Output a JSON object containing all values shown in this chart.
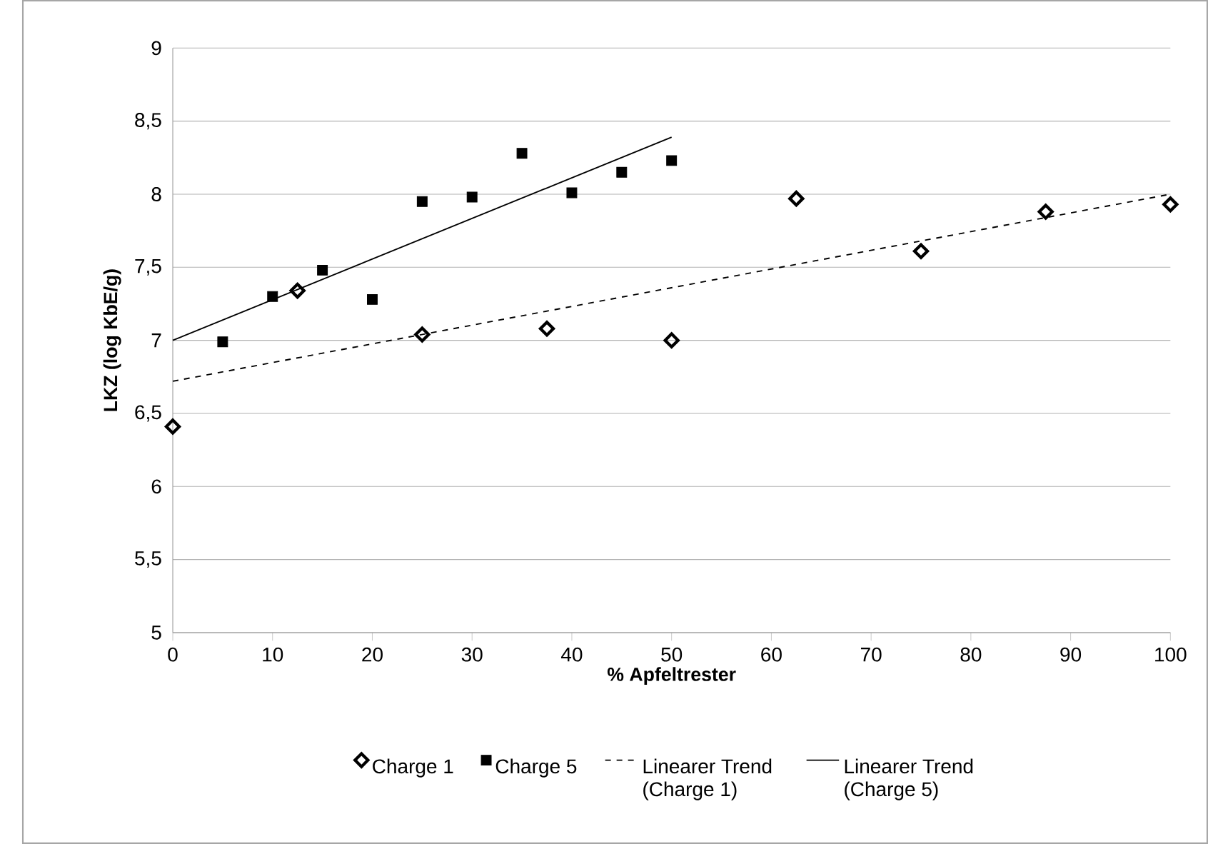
{
  "chart_data": {
    "type": "scatter",
    "xlabel": "% Apfeltrester",
    "ylabel": "LKZ (log KbE/g)",
    "xlim": [
      0,
      100
    ],
    "ylim": [
      5,
      9
    ],
    "xticks": [
      0,
      10,
      20,
      30,
      40,
      50,
      60,
      70,
      80,
      90,
      100
    ],
    "yticks": [
      5,
      {
        "value": 5.5,
        "label": "5,5"
      },
      6,
      {
        "value": 6.5,
        "label": "6,5"
      },
      7,
      {
        "value": 7.5,
        "label": "7,5"
      },
      8,
      {
        "value": 8.5,
        "label": "8,5"
      },
      9
    ],
    "grid": "y",
    "legend": "bottom",
    "series": [
      {
        "name": "Charge 1",
        "marker": "diamond",
        "color": "#000000",
        "x": [
          0,
          12.5,
          25,
          37.5,
          50,
          62.5,
          75,
          87.5,
          100
        ],
        "values": [
          6.41,
          7.34,
          7.04,
          7.08,
          7.0,
          7.97,
          7.61,
          7.88,
          7.93
        ]
      },
      {
        "name": "Charge 5",
        "marker": "square",
        "color": "#000000",
        "x": [
          5,
          10,
          15,
          20,
          25,
          30,
          35,
          40,
          45,
          50
        ],
        "values": [
          6.99,
          7.3,
          7.48,
          7.28,
          7.95,
          7.98,
          8.28,
          8.01,
          8.15,
          8.23
        ]
      },
      {
        "name": "Linearer Trend (Charge 1)",
        "type": "line",
        "line_style": "dashed",
        "color": "#000000",
        "x": [
          0,
          100
        ],
        "values": [
          6.72,
          8.0
        ]
      },
      {
        "name": "Linearer Trend (Charge 5)",
        "type": "line",
        "line_style": "solid",
        "color": "#000000",
        "x": [
          0,
          50
        ],
        "values": [
          7.0,
          8.39
        ]
      }
    ]
  }
}
